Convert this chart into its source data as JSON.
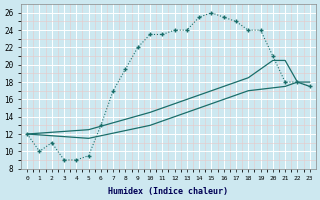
{
  "xlabel": "Humidex (Indice chaleur)",
  "bg_color": "#cde8f0",
  "line_color": "#1a6e6a",
  "grid_color": "#ffffff",
  "grid_minor_color": "#e8c8c8",
  "xlim": [
    -0.5,
    23.5
  ],
  "ylim": [
    8,
    27
  ],
  "yticks": [
    8,
    10,
    12,
    14,
    16,
    18,
    20,
    22,
    24,
    26
  ],
  "xticks": [
    0,
    1,
    2,
    3,
    4,
    5,
    6,
    7,
    8,
    9,
    10,
    11,
    12,
    13,
    14,
    15,
    16,
    17,
    18,
    19,
    20,
    21,
    22,
    23
  ],
  "line1_x": [
    0,
    1,
    2,
    3,
    4,
    5,
    6,
    7,
    8,
    9,
    10,
    11,
    12,
    13,
    14,
    15,
    16,
    17,
    18,
    19,
    20,
    21,
    22,
    23
  ],
  "line1_y": [
    12,
    10,
    11,
    9,
    9,
    9.5,
    13,
    17,
    19.5,
    22,
    23.5,
    23.5,
    24,
    24,
    25.5,
    26,
    25.5,
    25,
    24,
    24,
    21,
    18,
    18,
    17.5
  ],
  "line2_x": [
    0,
    5,
    10,
    14,
    18,
    20,
    21,
    22,
    23
  ],
  "line2_y": [
    12,
    12.5,
    14.5,
    16.5,
    18.5,
    20.5,
    20.5,
    18,
    18
  ],
  "line3_x": [
    0,
    5,
    10,
    14,
    18,
    21,
    22,
    23
  ],
  "line3_y": [
    12,
    11.5,
    13,
    15,
    17,
    17.5,
    18,
    17.5
  ]
}
